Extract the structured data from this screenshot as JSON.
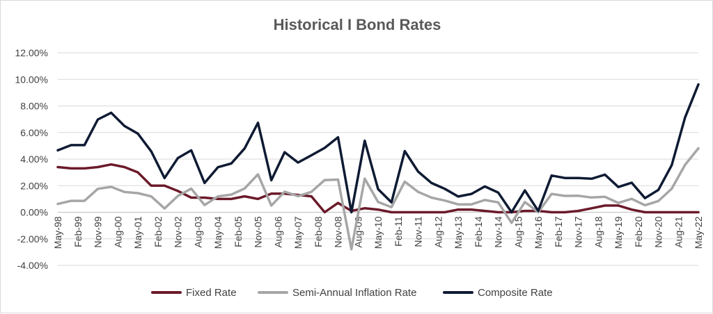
{
  "chart_data": {
    "type": "line",
    "title": "Historical I Bond Rates",
    "xlabel": "",
    "ylabel": "",
    "ylim": [
      -4,
      12
    ],
    "y_ticks": [
      -4,
      -2,
      0,
      2,
      4,
      6,
      8,
      10,
      12
    ],
    "y_tick_labels": [
      "-4.00%",
      "-2.00%",
      "0.00%",
      "2.00%",
      "4.00%",
      "6.00%",
      "8.00%",
      "10.00%",
      "12.00%"
    ],
    "grid": "horizontal",
    "legend_position": "bottom",
    "x": [
      "May-98",
      "Nov-98",
      "May-99",
      "Nov-99",
      "May-00",
      "Nov-00",
      "May-01",
      "Nov-01",
      "May-02",
      "Nov-02",
      "May-03",
      "Nov-03",
      "May-04",
      "Nov-04",
      "May-05",
      "Nov-05",
      "May-06",
      "Nov-06",
      "May-07",
      "Nov-07",
      "May-08",
      "Nov-08",
      "May-09",
      "Nov-09",
      "May-10",
      "Nov-10",
      "May-11",
      "Nov-11",
      "May-12",
      "Nov-12",
      "May-13",
      "Nov-13",
      "May-14",
      "Nov-14",
      "May-15",
      "Nov-15",
      "May-16",
      "Nov-16",
      "May-17",
      "Nov-17",
      "May-18",
      "Nov-18",
      "May-19",
      "Nov-19",
      "May-20",
      "Nov-20",
      "May-21",
      "Nov-21",
      "May-22"
    ],
    "tick_labels": [
      {
        "index": 0,
        "label": "May-98"
      },
      {
        "index": 1.5,
        "label": "Feb-99"
      },
      {
        "index": 3,
        "label": "Nov-99"
      },
      {
        "index": 4.5,
        "label": "Aug-00"
      },
      {
        "index": 6,
        "label": "May-01"
      },
      {
        "index": 7.5,
        "label": "Feb-02"
      },
      {
        "index": 9,
        "label": "Nov-02"
      },
      {
        "index": 10.5,
        "label": "Aug-03"
      },
      {
        "index": 12,
        "label": "May-04"
      },
      {
        "index": 13.5,
        "label": "Feb-05"
      },
      {
        "index": 15,
        "label": "Nov-05"
      },
      {
        "index": 16.5,
        "label": "Aug-06"
      },
      {
        "index": 18,
        "label": "May-07"
      },
      {
        "index": 19.5,
        "label": "Feb-08"
      },
      {
        "index": 21,
        "label": "Nov-08"
      },
      {
        "index": 22.5,
        "label": "Aug-09"
      },
      {
        "index": 24,
        "label": "May-10"
      },
      {
        "index": 25.5,
        "label": "Feb-11"
      },
      {
        "index": 27,
        "label": "Nov-11"
      },
      {
        "index": 28.5,
        "label": "Aug-12"
      },
      {
        "index": 30,
        "label": "May-13"
      },
      {
        "index": 31.5,
        "label": "Feb-14"
      },
      {
        "index": 33,
        "label": "Nov-14"
      },
      {
        "index": 34.5,
        "label": "Aug-15"
      },
      {
        "index": 36,
        "label": "May-16"
      },
      {
        "index": 37.5,
        "label": "Feb-17"
      },
      {
        "index": 39,
        "label": "Nov-17"
      },
      {
        "index": 40.5,
        "label": "Aug-18"
      },
      {
        "index": 42,
        "label": "May-19"
      },
      {
        "index": 43.5,
        "label": "Feb-20"
      },
      {
        "index": 45,
        "label": "Nov-20"
      },
      {
        "index": 46.5,
        "label": "Aug-21"
      },
      {
        "index": 48,
        "label": "May-22"
      }
    ],
    "series": [
      {
        "name": "Fixed Rate",
        "color": "#6b1a2a",
        "values": [
          3.4,
          3.3,
          3.3,
          3.4,
          3.6,
          3.4,
          3.0,
          2.0,
          2.0,
          1.6,
          1.1,
          1.1,
          1.0,
          1.0,
          1.2,
          1.0,
          1.4,
          1.4,
          1.3,
          1.2,
          0.0,
          0.7,
          0.1,
          0.3,
          0.2,
          0.0,
          0.0,
          0.0,
          0.0,
          0.0,
          0.2,
          0.2,
          0.1,
          0.0,
          0.0,
          0.1,
          0.1,
          0.0,
          0.0,
          0.1,
          0.3,
          0.5,
          0.5,
          0.2,
          0.0,
          0.0,
          0.0,
          0.0,
          0.0
        ]
      },
      {
        "name": "Semi-Annual Inflation Rate",
        "color": "#a6a6a6",
        "values": [
          0.62,
          0.86,
          0.86,
          1.76,
          1.91,
          1.52,
          1.44,
          1.19,
          0.28,
          1.23,
          1.77,
          0.54,
          1.19,
          1.33,
          1.79,
          2.85,
          0.5,
          1.55,
          1.21,
          1.53,
          2.42,
          2.46,
          -2.78,
          2.53,
          0.77,
          0.38,
          2.3,
          1.53,
          1.1,
          0.88,
          0.59,
          0.59,
          0.92,
          0.74,
          -0.8,
          0.77,
          0.0,
          1.38,
          1.23,
          1.24,
          1.11,
          1.16,
          0.7,
          1.01,
          0.53,
          0.84,
          1.77,
          3.56,
          4.81
        ]
      },
      {
        "name": "Composite Rate",
        "color": "#0f1b33",
        "values": [
          4.66,
          5.05,
          5.05,
          6.98,
          7.49,
          6.49,
          5.92,
          4.58,
          2.57,
          4.08,
          4.66,
          2.2,
          3.39,
          3.67,
          4.8,
          6.73,
          2.41,
          4.52,
          3.74,
          4.28,
          4.84,
          5.64,
          0.0,
          5.38,
          1.74,
          0.74,
          4.6,
          3.06,
          2.2,
          1.76,
          1.18,
          1.38,
          1.94,
          1.48,
          0.0,
          1.64,
          0.1,
          2.76,
          2.58,
          2.58,
          2.52,
          2.83,
          1.9,
          2.22,
          1.06,
          1.68,
          3.54,
          7.12,
          9.62
        ]
      }
    ]
  }
}
